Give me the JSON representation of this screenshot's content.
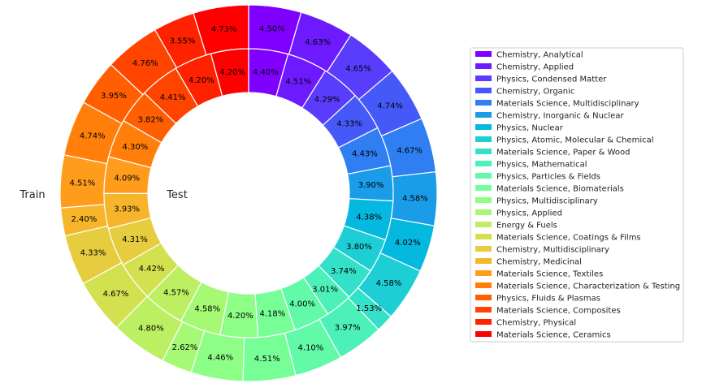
{
  "chart_data": {
    "type": "pie",
    "variant": "nested-donut",
    "ring_labels": {
      "outer": "Train",
      "inner": "Test"
    },
    "legend_placement": "right",
    "categories": [
      "Chemistry, Analytical",
      "Chemistry, Applied",
      "Physics, Condensed Matter",
      "Chemistry, Organic",
      "Materials Science, Multidisciplinary",
      "Chemistry, Inorganic & Nuclear",
      "Physics, Nuclear",
      "Physics, Atomic, Molecular & Chemical",
      "Materials Science, Paper & Wood",
      "Physics, Mathematical",
      "Physics, Particles & Fields",
      "Materials Science, Biomaterials",
      "Physics, Multidisciplinary",
      "Physics, Applied",
      "Energy & Fuels",
      "Materials Science, Coatings & Films",
      "Chemistry, Multidisciplinary",
      "Chemistry, Medicinal",
      "Materials Science, Textiles",
      "Materials Science, Characterization & Testing",
      "Physics, Fluids & Plasmas",
      "Materials Science, Composites",
      "Chemistry, Physical",
      "Materials Science, Ceramics"
    ],
    "colors": [
      "#7f00ff",
      "#6e1aff",
      "#5a3cfd",
      "#4459f8",
      "#2f7ef2",
      "#1a9ce9",
      "#05b8df",
      "#1dcfd5",
      "#35e0c8",
      "#4cf0b9",
      "#62f9a9",
      "#78fe97",
      "#8dfe86",
      "#a5f974",
      "#bcef62",
      "#d3e050",
      "#e6cd3f",
      "#f7b52c",
      "#ff9c1b",
      "#ff7f0a",
      "#ff5f00",
      "#ff4400",
      "#ff2200",
      "#ff0000"
    ],
    "series": [
      {
        "name": "Train",
        "ring": "outer",
        "values": [
          4.5,
          4.63,
          4.65,
          4.74,
          4.67,
          4.58,
          4.02,
          4.58,
          1.53,
          3.97,
          4.1,
          4.51,
          4.46,
          2.62,
          4.8,
          4.67,
          4.33,
          2.4,
          4.51,
          4.74,
          3.95,
          4.76,
          3.55,
          4.73
        ],
        "labels": [
          "4.50%",
          "4.63%",
          "4.65%",
          "4.74%",
          "4.67%",
          "4.58%",
          "4.02%",
          "4.58%",
          "1.53%",
          "3.97%",
          "4.10%",
          "4.51%",
          "4.46%",
          "2.62%",
          "4.80%",
          "4.67%",
          "4.33%",
          "2.40%",
          "4.51%",
          "4.74%",
          "3.95%",
          "4.76%",
          "3.55%",
          "4.73%"
        ]
      },
      {
        "name": "Test",
        "ring": "inner",
        "values": [
          4.4,
          4.51,
          4.29,
          4.33,
          4.43,
          3.9,
          4.38,
          3.8,
          3.74,
          3.01,
          4.0,
          4.18,
          4.2,
          4.58,
          4.57,
          4.42,
          4.31,
          3.93,
          4.09,
          4.3,
          3.82,
          4.41,
          4.2,
          4.2
        ],
        "labels": [
          "4.40%",
          "4.51%",
          "4.29%",
          "4.33%",
          "4.43%",
          "3.90%",
          "4.38%",
          "3.80%",
          "3.74%",
          "3.01%",
          "4.00%",
          "4.18%",
          "4.20%",
          "4.58%",
          "4.57%",
          "4.42%",
          "4.31%",
          "3.93%",
          "4.09%",
          "4.30%",
          "3.82%",
          "4.41%",
          "4.20%",
          "4.20%"
        ]
      }
    ]
  }
}
